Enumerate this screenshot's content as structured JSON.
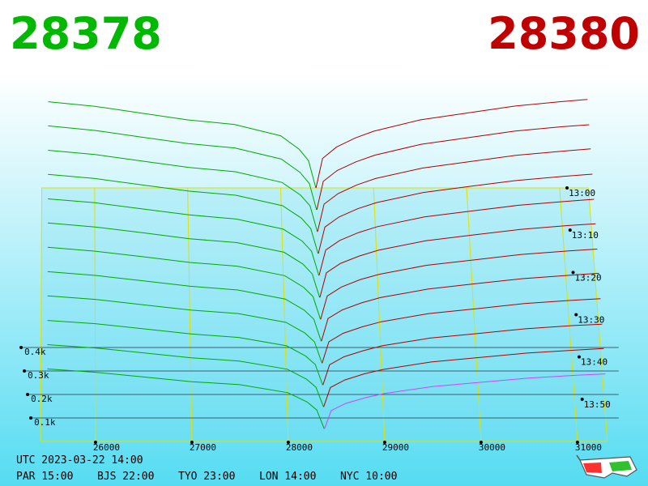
{
  "chart_data": {
    "type": "depth3d",
    "bid_price": "28378",
    "ask_price": "28380",
    "xlim": [
      25430,
      31310
    ],
    "xticks": [
      26000,
      27000,
      28000,
      29000,
      30000,
      31000
    ],
    "yticks": [
      {
        "value": 100,
        "label": "0.1k"
      },
      {
        "value": 200,
        "label": "0.2k"
      },
      {
        "value": 300,
        "label": "0.3k"
      },
      {
        "value": 400,
        "label": "0.4k"
      }
    ],
    "zticks": [
      "13:00",
      "13:10",
      "13:20",
      "13:30",
      "13:40",
      "13:50"
    ],
    "footer": {
      "utc": "UTC 2023-03-22 14:00",
      "zones": [
        "PAR 15:00",
        "BJS 22:00",
        "TYO 23:00",
        "LON 14:00",
        "NYC 10:00"
      ]
    },
    "bids": {
      "color": "#00a800",
      "prices": [
        28378,
        28300,
        28200,
        28000,
        27500,
        27000,
        26500,
        26000,
        25500
      ],
      "series": [
        {
          "values": [
            0,
            120,
            170,
            230,
            280,
            300,
            330,
            360,
            380
          ]
        },
        {
          "values": [
            0,
            116,
            165,
            223,
            272,
            291,
            320,
            349,
            369
          ]
        },
        {
          "values": [
            0,
            113,
            160,
            216,
            263,
            282,
            310,
            338,
            357
          ]
        },
        {
          "values": [
            0,
            109,
            155,
            209,
            255,
            273,
            300,
            328,
            346
          ]
        },
        {
          "values": [
            0,
            106,
            150,
            202,
            246,
            264,
            290,
            317,
            334
          ]
        },
        {
          "values": [
            0,
            102,
            145,
            196,
            238,
            255,
            281,
            306,
            323
          ]
        },
        {
          "values": [
            0,
            98,
            139,
            189,
            230,
            246,
            271,
            295,
            312
          ]
        },
        {
          "values": [
            0,
            95,
            134,
            182,
            221,
            237,
            261,
            284,
            300
          ]
        },
        {
          "values": [
            0,
            91,
            129,
            175,
            213,
            228,
            251,
            274,
            289
          ]
        },
        {
          "values": [
            0,
            88,
            124,
            168,
            204,
            219,
            241,
            263,
            277
          ]
        },
        {
          "values": [
            0,
            84,
            119,
            161,
            196,
            210,
            231,
            252,
            266
          ]
        },
        {
          "values": [
            0,
            80,
            114,
            154,
            188,
            201,
            221,
            241,
            255
          ]
        }
      ]
    },
    "asks": {
      "color": "#b00000",
      "front_color": "#cc44ff",
      "prices": [
        28380,
        28450,
        28600,
        28800,
        29000,
        29500,
        30000,
        30500,
        31000,
        31300
      ],
      "series": [
        {
          "values": [
            0,
            130,
            180,
            220,
            250,
            300,
            330,
            360,
            380,
            390
          ]
        },
        {
          "values": [
            0,
            125,
            173,
            211,
            240,
            288,
            317,
            346,
            365,
            374
          ]
        },
        {
          "values": [
            0,
            121,
            167,
            205,
            233,
            279,
            307,
            335,
            353,
            363
          ]
        },
        {
          "values": [
            0,
            116,
            160,
            196,
            223,
            267,
            294,
            320,
            338,
            347
          ]
        },
        {
          "values": [
            0,
            111,
            153,
            187,
            213,
            255,
            281,
            306,
            323,
            332
          ]
        },
        {
          "values": [
            0,
            107,
            148,
            180,
            205,
            246,
            271,
            295,
            312,
            320
          ]
        },
        {
          "values": [
            0,
            101,
            140,
            172,
            195,
            234,
            257,
            281,
            296,
            304
          ]
        },
        {
          "values": [
            0,
            98,
            135,
            165,
            188,
            225,
            248,
            270,
            285,
            293
          ]
        },
        {
          "values": [
            0,
            92,
            128,
            156,
            178,
            213,
            234,
            256,
            270,
            277
          ]
        },
        {
          "values": [
            0,
            87,
            121,
            147,
            168,
            201,
            221,
            241,
            255,
            261
          ]
        },
        {
          "values": [
            0,
            83,
            115,
            141,
            160,
            192,
            211,
            230,
            243,
            250
          ]
        },
        {
          "values": [
            0,
            78,
            108,
            132,
            150,
            180,
            198,
            216,
            228,
            234
          ]
        }
      ]
    }
  }
}
